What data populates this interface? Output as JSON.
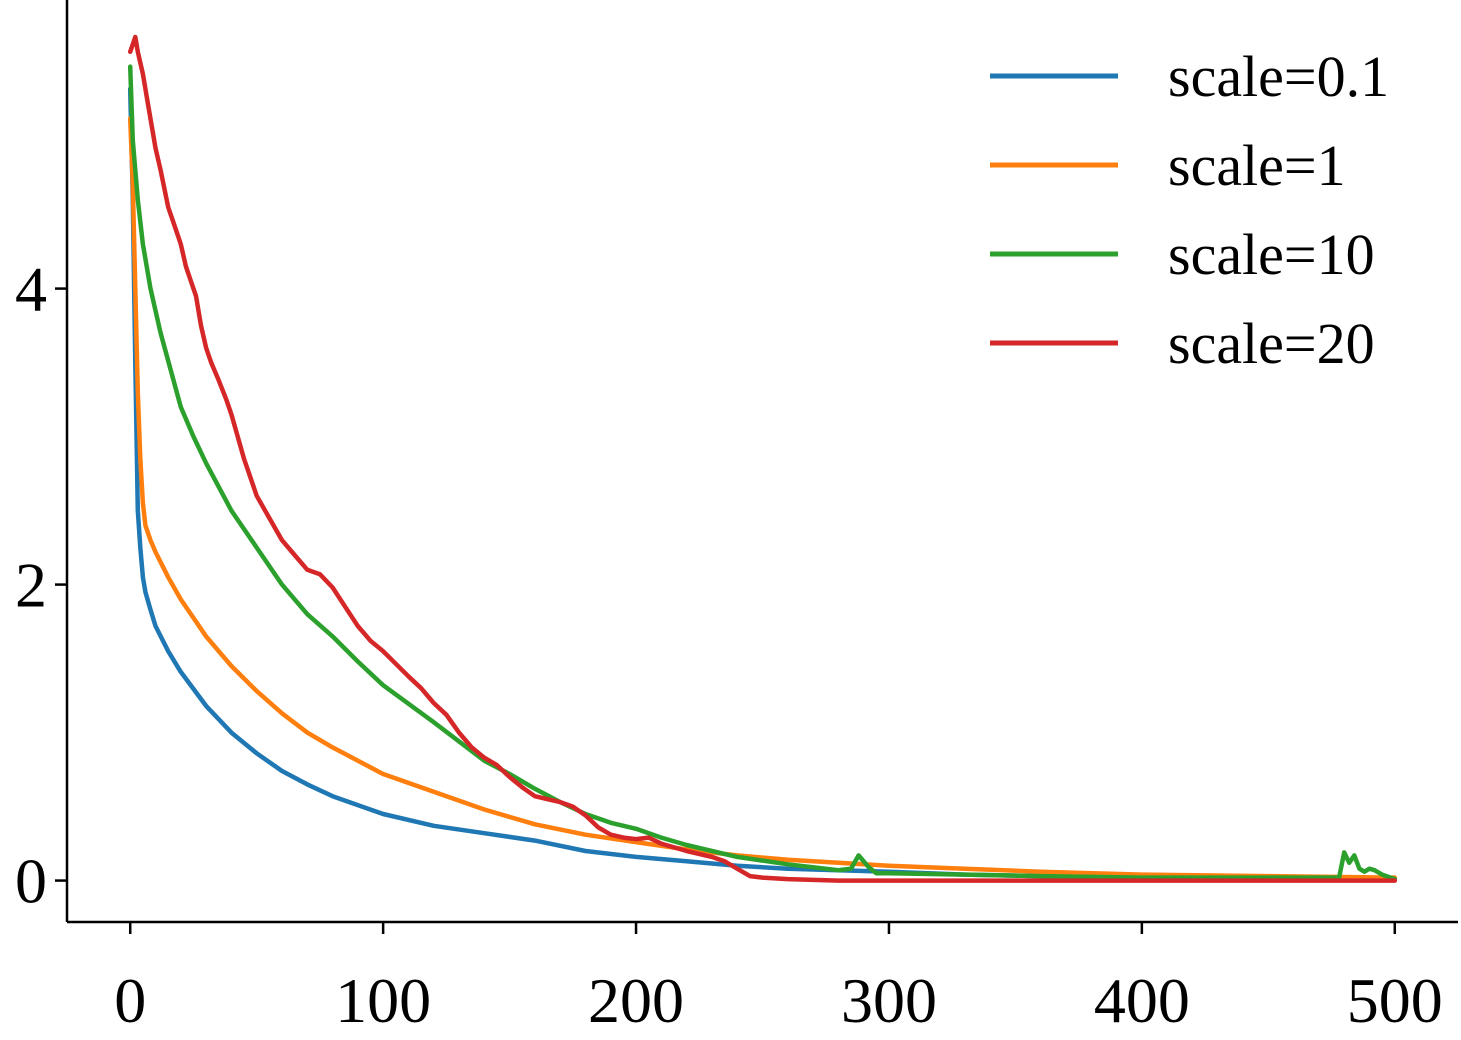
{
  "chart_data": {
    "type": "line",
    "title": "",
    "xlabel": "",
    "ylabel": "",
    "xlim": [
      -25,
      525
    ],
    "ylim": [
      -0.28,
      5.95
    ],
    "xticks": [
      0,
      100,
      200,
      300,
      400,
      500
    ],
    "yticks": [
      0,
      2,
      4
    ],
    "grid": false,
    "legend_position": "top-right",
    "series": [
      {
        "name": "scale=0.1",
        "color": "#1f77b4",
        "x": [
          0,
          1,
          2,
          3,
          4,
          5,
          6,
          8,
          10,
          15,
          20,
          30,
          40,
          50,
          60,
          70,
          80,
          100,
          120,
          140,
          160,
          180,
          200,
          220,
          240,
          260,
          280,
          300,
          330,
          360,
          400,
          450,
          500
        ],
        "y": [
          5.35,
          4.6,
          3.5,
          2.5,
          2.25,
          2.05,
          1.95,
          1.83,
          1.72,
          1.55,
          1.41,
          1.18,
          1.0,
          0.86,
          0.74,
          0.65,
          0.57,
          0.45,
          0.37,
          0.32,
          0.27,
          0.2,
          0.16,
          0.13,
          0.1,
          0.08,
          0.07,
          0.06,
          0.04,
          0.03,
          0.02,
          0.015,
          0.01
        ]
      },
      {
        "name": "scale=1",
        "color": "#ff7f0e",
        "x": [
          0,
          1,
          2,
          3,
          4,
          5,
          6,
          8,
          10,
          15,
          20,
          30,
          40,
          50,
          60,
          70,
          80,
          100,
          120,
          140,
          160,
          180,
          200,
          220,
          240,
          260,
          280,
          300,
          330,
          360,
          400,
          450,
          500
        ],
        "y": [
          5.15,
          4.7,
          4.0,
          3.3,
          2.85,
          2.55,
          2.4,
          2.3,
          2.22,
          2.05,
          1.9,
          1.65,
          1.45,
          1.28,
          1.13,
          1.0,
          0.9,
          0.72,
          0.6,
          0.48,
          0.38,
          0.31,
          0.26,
          0.21,
          0.17,
          0.14,
          0.12,
          0.1,
          0.08,
          0.06,
          0.04,
          0.03,
          0.02
        ]
      },
      {
        "name": "scale=10",
        "color": "#2ca02c",
        "x": [
          0,
          1,
          3,
          5,
          8,
          12,
          16,
          20,
          25,
          30,
          40,
          50,
          60,
          70,
          80,
          90,
          100,
          120,
          140,
          150,
          160,
          170,
          180,
          190,
          200,
          210,
          220,
          240,
          260,
          280,
          285,
          288,
          292,
          295,
          300,
          330,
          360,
          400,
          450,
          478,
          480,
          482,
          484,
          486,
          488,
          490,
          492,
          495,
          500
        ],
        "y": [
          5.5,
          5.0,
          4.6,
          4.3,
          4.0,
          3.7,
          3.45,
          3.2,
          3.0,
          2.82,
          2.5,
          2.25,
          2.0,
          1.8,
          1.65,
          1.48,
          1.32,
          1.07,
          0.81,
          0.72,
          0.62,
          0.53,
          0.45,
          0.39,
          0.35,
          0.29,
          0.24,
          0.16,
          0.11,
          0.07,
          0.08,
          0.17,
          0.09,
          0.05,
          0.05,
          0.04,
          0.03,
          0.02,
          0.02,
          0.02,
          0.19,
          0.12,
          0.17,
          0.08,
          0.06,
          0.08,
          0.07,
          0.04,
          0.01
        ]
      },
      {
        "name": "scale=20",
        "color": "#d62728",
        "x": [
          0,
          1,
          2,
          3,
          5,
          7,
          10,
          12,
          15,
          18,
          20,
          22,
          24,
          26,
          28,
          30,
          32,
          35,
          38,
          40,
          45,
          50,
          55,
          60,
          65,
          70,
          75,
          80,
          85,
          90,
          95,
          100,
          110,
          115,
          120,
          125,
          130,
          135,
          140,
          145,
          150,
          155,
          160,
          165,
          170,
          175,
          180,
          185,
          190,
          195,
          200,
          205,
          210,
          220,
          230,
          235,
          240,
          245,
          250,
          260,
          280,
          300,
          350,
          400,
          450,
          500
        ],
        "y": [
          5.6,
          5.65,
          5.7,
          5.6,
          5.45,
          5.25,
          4.95,
          4.8,
          4.55,
          4.4,
          4.3,
          4.15,
          4.05,
          3.95,
          3.75,
          3.6,
          3.5,
          3.38,
          3.25,
          3.15,
          2.85,
          2.6,
          2.45,
          2.3,
          2.2,
          2.1,
          2.07,
          1.98,
          1.85,
          1.72,
          1.62,
          1.55,
          1.38,
          1.3,
          1.2,
          1.12,
          1.0,
          0.9,
          0.83,
          0.78,
          0.7,
          0.63,
          0.57,
          0.55,
          0.53,
          0.5,
          0.44,
          0.36,
          0.31,
          0.29,
          0.28,
          0.29,
          0.25,
          0.2,
          0.16,
          0.13,
          0.08,
          0.03,
          0.02,
          0.01,
          0.0,
          0.0,
          0.0,
          0.0,
          0.0,
          0.0
        ]
      }
    ]
  }
}
